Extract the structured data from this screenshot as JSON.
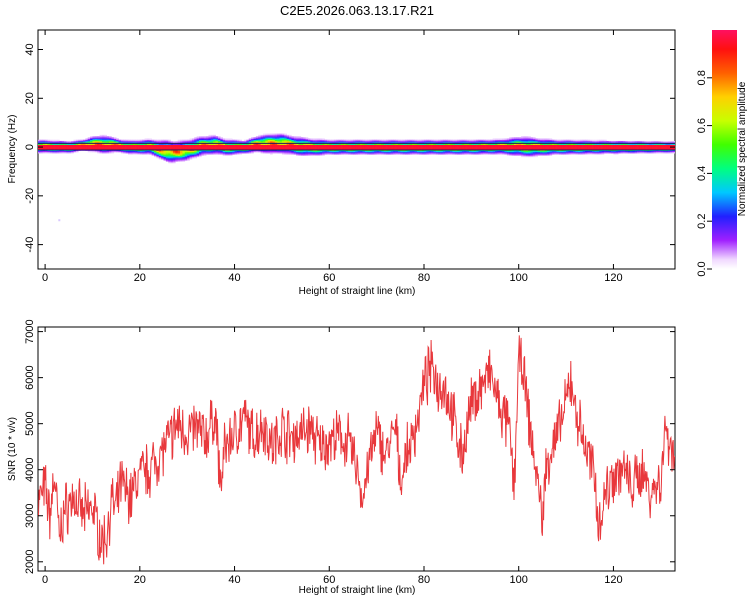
{
  "title": "C2E5.2026.063.13.17.R21",
  "colorbar": {
    "label": "Normalized spectral amplitude",
    "ticks": [
      0.0,
      0.2,
      0.4,
      0.6,
      0.8
    ],
    "tick_labels": [
      "0.0",
      "0.2",
      "0.4",
      "0.6",
      "0.8"
    ],
    "range": [
      0,
      1
    ]
  },
  "chart_data": [
    {
      "type": "heatmap",
      "title": "",
      "xlabel": "Height of straight line (km)",
      "ylabel": "Frequency (Hz)",
      "xlim": [
        -1.5,
        133
      ],
      "ylim": [
        -50,
        48
      ],
      "xticks": [
        0,
        20,
        40,
        60,
        80,
        100,
        120
      ],
      "xtick_labels": [
        "0",
        "20",
        "40",
        "60",
        "80",
        "100",
        "120"
      ],
      "yticks": [
        -40,
        -20,
        0,
        20,
        40
      ],
      "ytick_labels": [
        "-40",
        "-20",
        "0",
        "20",
        "40"
      ],
      "band": {
        "center_freq_hz": 0,
        "description": "narrow high-amplitude band near 0 Hz across all heights",
        "offsets": [
          {
            "x": 0,
            "f": 0.3
          },
          {
            "x": 5,
            "f": 0.0
          },
          {
            "x": 10,
            "f": 1.3
          },
          {
            "x": 14,
            "f": 1.0
          },
          {
            "x": 18,
            "f": 0.0
          },
          {
            "x": 22,
            "f": 0.2
          },
          {
            "x": 24,
            "f": -0.8
          },
          {
            "x": 27,
            "f": -2.0
          },
          {
            "x": 30,
            "f": -1.2
          },
          {
            "x": 33,
            "f": 0.5
          },
          {
            "x": 36,
            "f": 1.0
          },
          {
            "x": 38,
            "f": 0.0
          },
          {
            "x": 42,
            "f": 0.0
          },
          {
            "x": 45,
            "f": 1.3
          },
          {
            "x": 50,
            "f": 1.5
          },
          {
            "x": 53,
            "f": 0.5
          },
          {
            "x": 56,
            "f": 0.0
          },
          {
            "x": 70,
            "f": 0.0
          },
          {
            "x": 90,
            "f": 0.0
          },
          {
            "x": 100,
            "f": 0.3
          },
          {
            "x": 104,
            "f": 0.0
          },
          {
            "x": 120,
            "f": 0.0
          },
          {
            "x": 133,
            "f": 0.0
          }
        ],
        "spread": [
          {
            "x": 0,
            "w": 3.5
          },
          {
            "x": 8,
            "w": 3.0
          },
          {
            "x": 12,
            "w": 5.0
          },
          {
            "x": 16,
            "w": 3.5
          },
          {
            "x": 22,
            "w": 4.0
          },
          {
            "x": 26,
            "w": 6.0
          },
          {
            "x": 30,
            "w": 5.5
          },
          {
            "x": 36,
            "w": 5.0
          },
          {
            "x": 42,
            "w": 3.5
          },
          {
            "x": 48,
            "w": 5.5
          },
          {
            "x": 54,
            "w": 5.0
          },
          {
            "x": 60,
            "w": 4.0
          },
          {
            "x": 80,
            "w": 4.0
          },
          {
            "x": 96,
            "w": 4.0
          },
          {
            "x": 101,
            "w": 5.5
          },
          {
            "x": 108,
            "w": 4.0
          },
          {
            "x": 120,
            "w": 3.5
          },
          {
            "x": 133,
            "w": 3.0
          }
        ]
      },
      "outliers": [
        {
          "x": 3,
          "f": -30
        }
      ]
    },
    {
      "type": "line",
      "title": "",
      "xlabel": "Height of straight line (km)",
      "ylabel": "SNR (10 * v/v)",
      "xlim": [
        -1.5,
        133
      ],
      "ylim": [
        1800,
        7100
      ],
      "xticks": [
        0,
        20,
        40,
        60,
        80,
        100,
        120
      ],
      "xtick_labels": [
        "0",
        "20",
        "40",
        "60",
        "80",
        "100",
        "120"
      ],
      "yticks": [
        2000,
        3000,
        4000,
        5000,
        6000,
        7000
      ],
      "ytick_labels": [
        "2000",
        "3000",
        "4000",
        "5000",
        "6000",
        "7000"
      ],
      "color": "#e8383c",
      "series": [
        {
          "name": "SNR",
          "x": [
            -1.5,
            0,
            1,
            2,
            3,
            4,
            6,
            8,
            10,
            11,
            12,
            13,
            14,
            15,
            16,
            18,
            20,
            22,
            24,
            26,
            28,
            30,
            32,
            34,
            36,
            37,
            38,
            40,
            42,
            44,
            46,
            48,
            50,
            52,
            54,
            56,
            58,
            60,
            62,
            64,
            66,
            67,
            68,
            70,
            72,
            74,
            75,
            76,
            78,
            80,
            81,
            82,
            83,
            84,
            86,
            88,
            90,
            92,
            94,
            96,
            98,
            99,
            100,
            101,
            102,
            104,
            105,
            106,
            108,
            110,
            111,
            112,
            114,
            116,
            117,
            118,
            120,
            122,
            124,
            126,
            128,
            130,
            131,
            132,
            133
          ],
          "y": [
            3300,
            3600,
            3000,
            3900,
            2500,
            3100,
            3400,
            3000,
            3200,
            2800,
            2400,
            2600,
            3300,
            3100,
            3700,
            3400,
            3900,
            4000,
            4300,
            4600,
            5000,
            4800,
            4900,
            4700,
            5200,
            3600,
            4500,
            4800,
            5100,
            4700,
            5000,
            4500,
            4900,
            4700,
            4800,
            4900,
            4500,
            4600,
            4700,
            4600,
            4000,
            3300,
            4000,
            4800,
            4300,
            4900,
            3800,
            4200,
            4800,
            5800,
            6100,
            6200,
            5800,
            5900,
            5200,
            4300,
            5400,
            5800,
            6100,
            5300,
            4900,
            3600,
            6400,
            6100,
            5200,
            3700,
            3000,
            4200,
            4700,
            5400,
            6000,
            5300,
            4500,
            3900,
            2800,
            3400,
            3900,
            4000,
            3600,
            4000,
            3500,
            3800,
            4900,
            4600,
            4300
          ]
        }
      ]
    }
  ]
}
